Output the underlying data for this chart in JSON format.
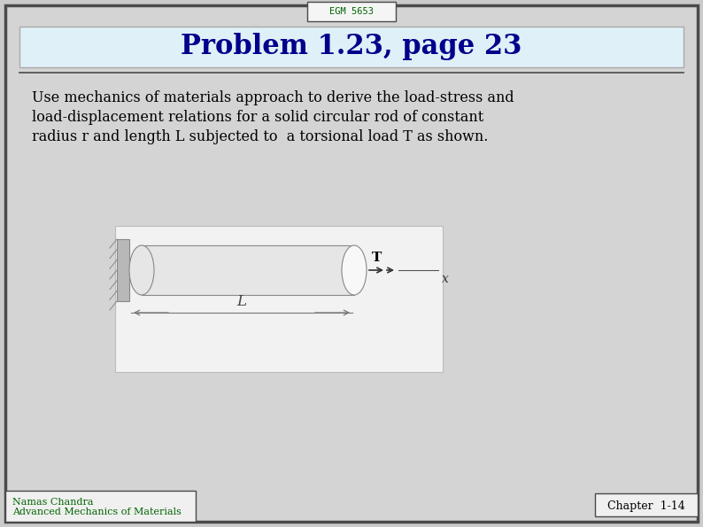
{
  "title": "EGM 5653",
  "slide_title": "Problem 1.23, page 23",
  "body_text_lines": [
    "Use mechanics of materials approach to derive the load-stress and",
    "load-displacement relations for a solid circular rod of constant",
    "radius r and length L subjected to  a torsional load T as shown."
  ],
  "footer_left_line1": "Namas Chandra",
  "footer_left_line2": "Advanced Mechanics of Materials",
  "footer_right": "Chapter  1-14",
  "bg_color": "#cbcbcb",
  "slide_bg": "#d4d4d4",
  "title_bg": "#dff0f8",
  "title_color": "#00008B",
  "body_color": "#000000",
  "footer_color": "#006400",
  "border_color": "#4a4a4a",
  "diagram_bg": "#f2f2f2",
  "cylinder_body_color": "#e6e6e6",
  "cylinder_face_color": "#f8f8f8",
  "cylinder_outline": "#888888",
  "wall_color": "#b8b8b8",
  "dim_color": "#777777"
}
